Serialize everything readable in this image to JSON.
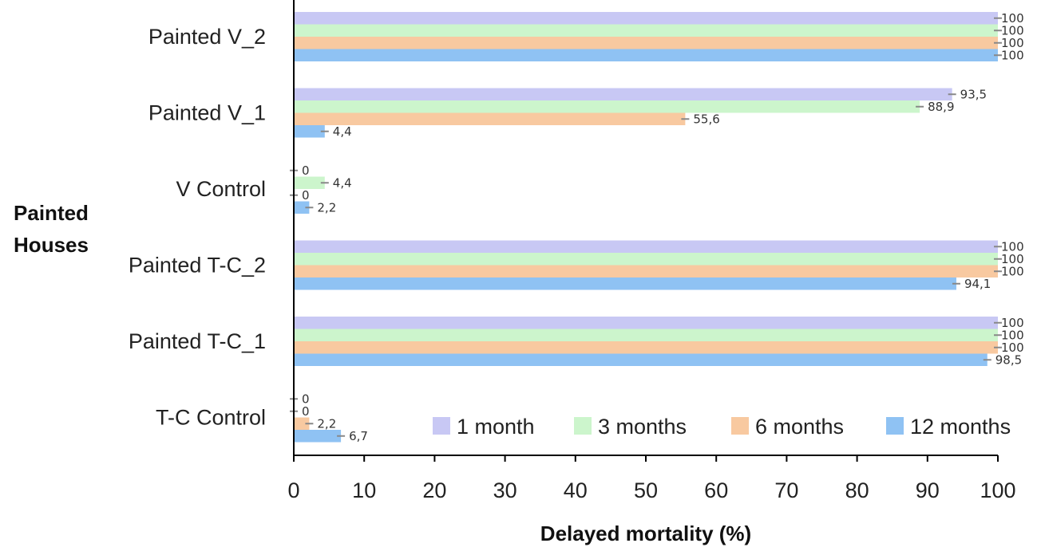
{
  "chart_data": {
    "type": "bar",
    "orientation": "horizontal",
    "ylabel_lines": [
      "Painted",
      "Houses"
    ],
    "xlabel": "Delayed mortality (%)",
    "xlim": [
      0,
      100
    ],
    "xticks": [
      "0",
      "10",
      "20",
      "30",
      "40",
      "50",
      "60",
      "70",
      "80",
      "90",
      "100"
    ],
    "categories": [
      "Painted V_2",
      "Painted V_1",
      "V Control",
      "Painted T-C_2",
      "Painted T-C_1",
      "T-C Control"
    ],
    "series": [
      {
        "name": "1 month",
        "color": "#c8c8f4",
        "values": [
          100,
          93.5,
          0,
          100,
          100,
          0
        ],
        "labels": [
          "100",
          "93,5",
          "0",
          "100",
          "100",
          "0"
        ]
      },
      {
        "name": "3 months",
        "color": "#ccf5cc",
        "values": [
          100,
          88.9,
          4.4,
          100,
          100,
          0
        ],
        "labels": [
          "100",
          "88,9",
          "4,4",
          "100",
          "100",
          "0"
        ]
      },
      {
        "name": "6 months",
        "color": "#f8c9a0",
        "values": [
          100,
          55.6,
          0,
          100,
          100,
          2.2
        ],
        "labels": [
          "100",
          "55,6",
          "0",
          "100",
          "100",
          "2,2"
        ]
      },
      {
        "name": "12 months",
        "color": "#8fc2f3",
        "values": [
          100,
          4.4,
          2.2,
          94.1,
          98.5,
          6.7
        ],
        "labels": [
          "100",
          "4,4",
          "2,2",
          "94,1",
          "98,5",
          "6,7"
        ]
      }
    ],
    "legend": [
      "1 month",
      "3 months",
      "6 months",
      "12 months"
    ],
    "legend_position": "bottom-right inside"
  }
}
